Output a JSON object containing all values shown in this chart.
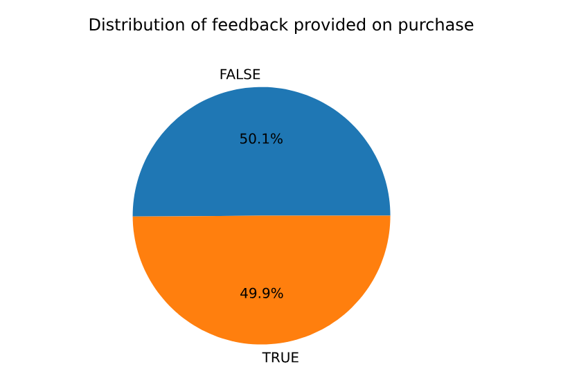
{
  "chart_data": {
    "type": "pie",
    "title": "Distribution of feedback provided on purchase",
    "categories": [
      "FALSE",
      "TRUE"
    ],
    "values": [
      50.1,
      49.9
    ],
    "colors": [
      "#1f77b4",
      "#ff7f0e"
    ],
    "value_labels": [
      "50.1%",
      "49.9%"
    ]
  }
}
